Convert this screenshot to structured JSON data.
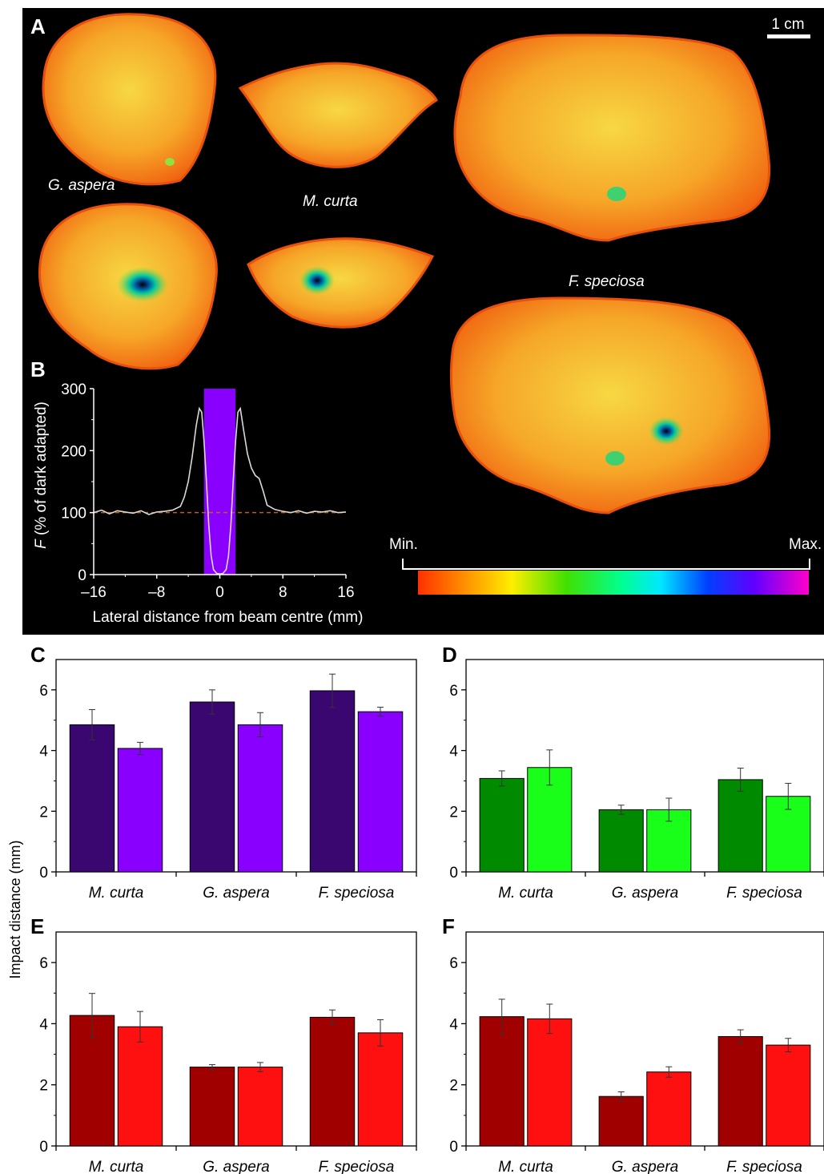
{
  "panels": {
    "A": {
      "label": "A",
      "scale_bar": "1 cm",
      "species_labels": {
        "g_aspera": "G. aspera",
        "m_curta": "M. curta",
        "f_speciosa": "F. speciosa"
      },
      "colorbar": {
        "min_label": "Min.",
        "max_label": "Max."
      }
    },
    "B": {
      "label": "B"
    },
    "C": {
      "label": "C"
    },
    "D": {
      "label": "D"
    },
    "E": {
      "label": "E"
    },
    "F": {
      "label": "F"
    }
  },
  "shared_ylabel": "Impact distance (mm)",
  "colors": {
    "background_dark": "#000000",
    "coral_orange": "#f56a12",
    "coral_yellow": "#f3c33a",
    "beam": "#8a00ff",
    "trace": "#d9d9d9",
    "dashed": "#c06010",
    "C_dark": "#3a0670",
    "C_light": "#8a00ff",
    "D_dark": "#008a00",
    "D_light": "#1aff1a",
    "E_dark": "#a00000",
    "E_light": "#ff1010",
    "F_dark": "#a00000",
    "F_light": "#ff1010"
  },
  "chart_data": [
    {
      "panel": "B",
      "type": "line",
      "ylabel_italic": "F",
      "ylabel_rest": " (% of dark adapted)",
      "xlabel": "Lateral distance from beam centre (mm)",
      "xlim": [
        -16,
        16
      ],
      "ylim": [
        0,
        300
      ],
      "xticks": [
        "–16",
        "–8",
        "0",
        "8",
        "16"
      ],
      "xtick_values": [
        -16,
        -8,
        0,
        8,
        16
      ],
      "yticks": [
        "0",
        "100",
        "200",
        "300"
      ],
      "ytick_values": [
        0,
        100,
        200,
        300
      ],
      "beam_region": [
        -2,
        2
      ],
      "baseline": 100,
      "series": [
        {
          "x": [
            -16,
            -15,
            -14,
            -13,
            -12,
            -11,
            -10,
            -9,
            -8,
            -7,
            -6,
            -5,
            -4.5,
            -4,
            -3.5,
            -3,
            -2.6,
            -2.3,
            -2,
            -1.7,
            -1.4,
            -1.1,
            -0.8,
            -0.4,
            0,
            0.4,
            0.8,
            1.1,
            1.4,
            1.7,
            2,
            2.3,
            2.6,
            3,
            3.5,
            4,
            4.5,
            5,
            5.5,
            6,
            7,
            8,
            9,
            10,
            11,
            12,
            13,
            14,
            15,
            16
          ],
          "y": [
            100,
            104,
            98,
            103,
            101,
            99,
            103,
            97,
            101,
            102,
            104,
            110,
            125,
            150,
            190,
            240,
            268,
            262,
            215,
            150,
            80,
            30,
            8,
            2,
            1,
            2,
            8,
            30,
            80,
            150,
            215,
            262,
            268,
            235,
            195,
            172,
            160,
            155,
            135,
            112,
            105,
            102,
            100,
            103,
            99,
            102,
            101,
            103,
            100,
            101
          ]
        }
      ]
    },
    {
      "panel": "C",
      "type": "bar",
      "categories": [
        "M. curta",
        "G. aspera",
        "F. speciosa"
      ],
      "ylim": [
        0,
        7
      ],
      "yticks": [
        0,
        2,
        4,
        6
      ],
      "series": [
        {
          "values": [
            4.85,
            5.6,
            5.97
          ],
          "errors": [
            0.5,
            0.4,
            0.55
          ]
        },
        {
          "values": [
            4.07,
            4.85,
            5.28
          ],
          "errors": [
            0.2,
            0.4,
            0.15
          ]
        }
      ]
    },
    {
      "panel": "D",
      "type": "bar",
      "categories": [
        "M. curta",
        "G. aspera",
        "F. speciosa"
      ],
      "ylim": [
        0,
        7
      ],
      "yticks": [
        0,
        2,
        4,
        6
      ],
      "series": [
        {
          "values": [
            3.08,
            2.05,
            3.04
          ],
          "errors": [
            0.25,
            0.15,
            0.38
          ]
        },
        {
          "values": [
            3.44,
            2.05,
            2.49
          ],
          "errors": [
            0.58,
            0.38,
            0.43
          ]
        }
      ]
    },
    {
      "panel": "E",
      "type": "bar",
      "categories": [
        "M. curta",
        "G. aspera",
        "F. speciosa"
      ],
      "ylim": [
        0,
        7
      ],
      "yticks": [
        0,
        2,
        4,
        6
      ],
      "series": [
        {
          "values": [
            4.27,
            2.58,
            4.21
          ],
          "errors": [
            0.72,
            0.08,
            0.24
          ]
        },
        {
          "values": [
            3.9,
            2.58,
            3.7
          ],
          "errors": [
            0.5,
            0.15,
            0.43
          ]
        }
      ]
    },
    {
      "panel": "F",
      "type": "bar",
      "categories": [
        "M. curta",
        "G. aspera",
        "F. speciosa"
      ],
      "ylim": [
        0,
        7
      ],
      "yticks": [
        0,
        2,
        4,
        6
      ],
      "series": [
        {
          "values": [
            4.23,
            1.62,
            3.58
          ],
          "errors": [
            0.57,
            0.15,
            0.22
          ]
        },
        {
          "values": [
            4.16,
            2.42,
            3.3
          ],
          "errors": [
            0.48,
            0.17,
            0.22
          ]
        }
      ]
    }
  ]
}
